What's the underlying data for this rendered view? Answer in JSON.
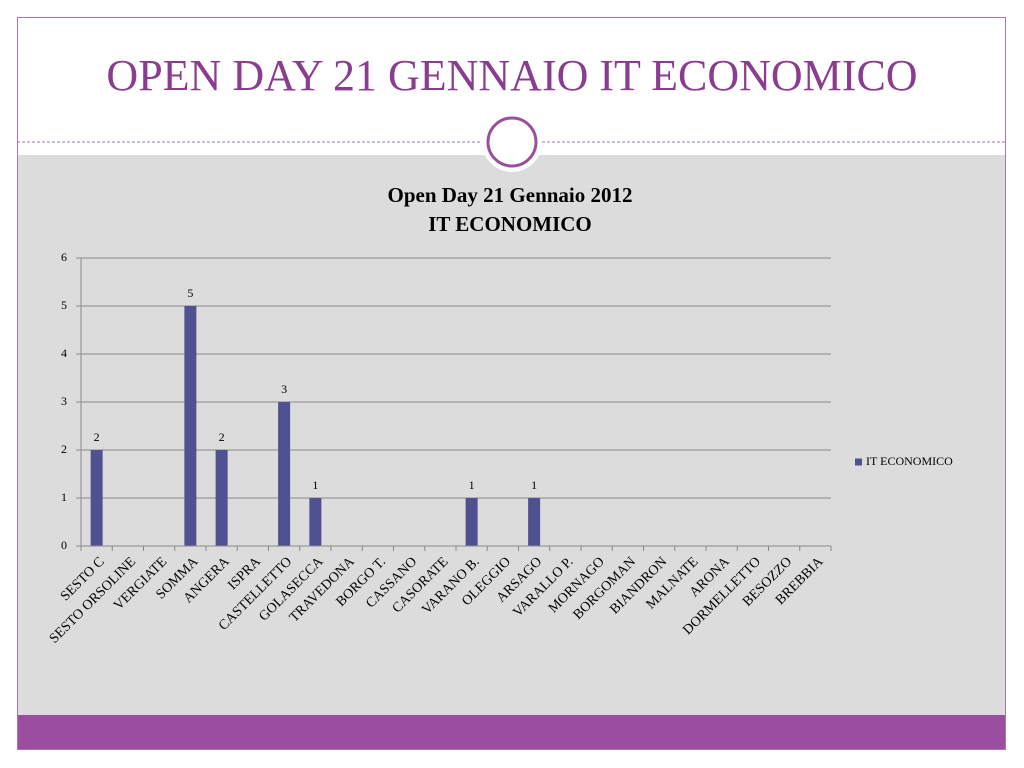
{
  "slide_title": "OPEN DAY 21 GENNAIO IT ECONOMICO",
  "chart_data": {
    "type": "bar",
    "title": "Open Day 21 Gennaio 2012",
    "subtitle": "IT ECONOMICO",
    "categories": [
      "SESTO C",
      "SESTO ORSOLINE",
      "VERGIATE",
      "SOMMA",
      "ANGERA",
      "ISPRA",
      "CASTELLETTO",
      "GOLASECCA",
      "TRAVEDONA",
      "BORGO T.",
      "CASSANO",
      "CASORATE",
      "VARANO B.",
      "OLEGGIO",
      "ARSAGO",
      "VARALLO P.",
      "MORNAGO",
      "BORGOMAN",
      "BIANDRON",
      "MALNATE",
      "ARONA",
      "DORMELLETTO",
      "BESOZZO",
      "BREBBIA"
    ],
    "series": [
      {
        "name": "IT ECONOMICO",
        "color": "#4f5191",
        "values": [
          2,
          null,
          null,
          5,
          2,
          null,
          3,
          1,
          null,
          null,
          null,
          null,
          1,
          null,
          1,
          null,
          null,
          null,
          null,
          null,
          null,
          null,
          null,
          null
        ]
      }
    ],
    "ylim": [
      0,
      6
    ],
    "yticks": [
      0,
      1,
      2,
      3,
      4,
      5,
      6
    ],
    "grid": true,
    "legend": "right"
  }
}
